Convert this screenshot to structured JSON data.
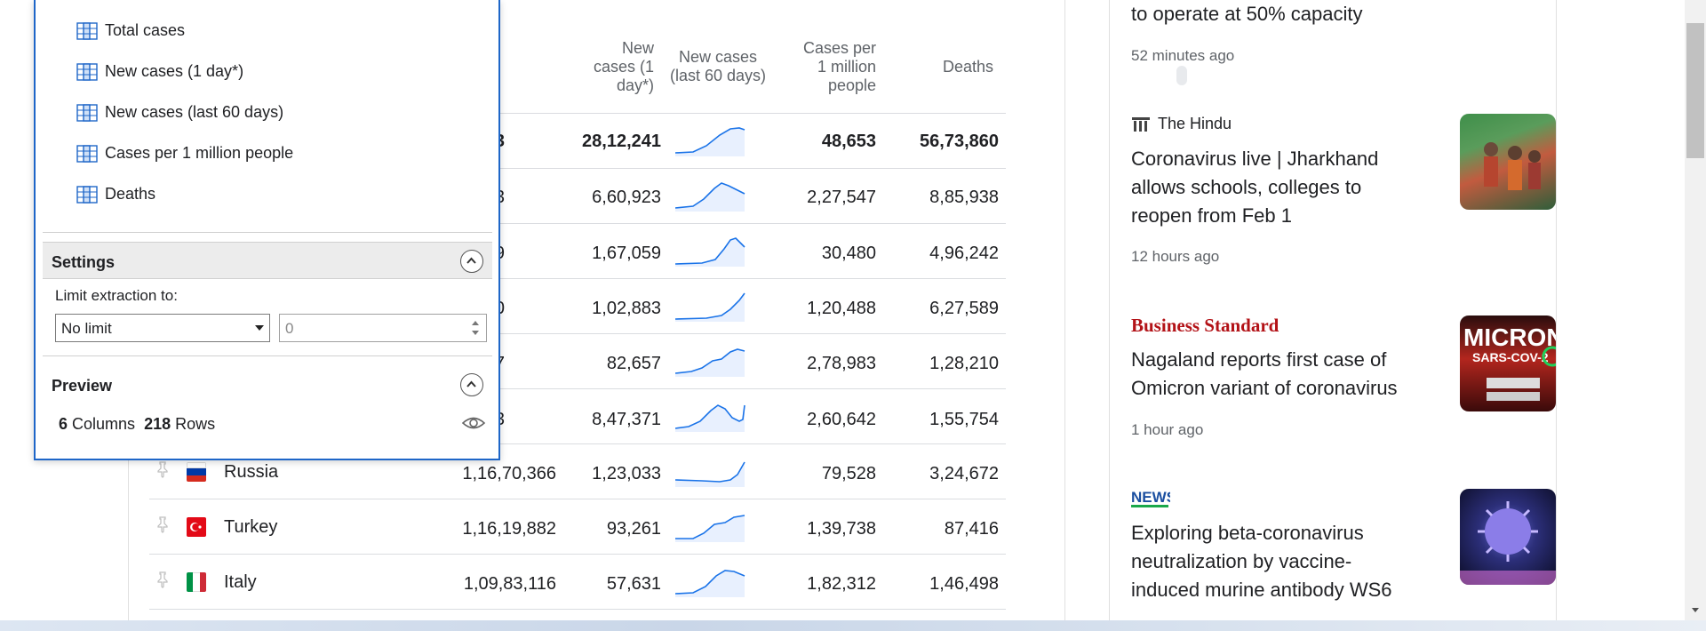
{
  "popup": {
    "column_items": [
      {
        "label": "Total cases"
      },
      {
        "label": "New cases (1 day*)"
      },
      {
        "label": "New cases (last 60 days)"
      },
      {
        "label": "Cases per 1 million people"
      },
      {
        "label": "Deaths"
      }
    ],
    "settings_title": "Settings",
    "limit_label": "Limit extraction to:",
    "limit_select_value": "No limit",
    "limit_number_value": "0",
    "preview_title": "Preview",
    "preview_columns_count": "6",
    "preview_columns_label": "Columns",
    "preview_rows_count": "218",
    "preview_rows_label": "Rows"
  },
  "table": {
    "headers": {
      "new_cases_1day": "New cases (1 day*)",
      "new_cases_60days": "New cases (last 60 days)",
      "cases_per_million": "Cases per 1 million people",
      "deaths": "Deaths"
    },
    "rows": [
      {
        "country": "",
        "total_suffix": "3",
        "new1": "28,12,241",
        "permil": "48,653",
        "deaths": "56,73,860",
        "bold": true
      },
      {
        "country": "",
        "total_suffix": "3",
        "new1": "6,60,923",
        "permil": "2,27,547",
        "deaths": "8,85,938"
      },
      {
        "country": "",
        "total_suffix": "9",
        "new1": "1,67,059",
        "permil": "30,480",
        "deaths": "4,96,242"
      },
      {
        "country": "",
        "total_suffix": "0",
        "new1": "1,02,883",
        "permil": "1,20,488",
        "deaths": "6,27,589"
      },
      {
        "country": "",
        "total_suffix": "7",
        "new1": "82,657",
        "permil": "2,78,983",
        "deaths": "1,28,210"
      },
      {
        "country": "",
        "total_suffix": "3",
        "new1": "8,47,371",
        "permil": "2,60,642",
        "deaths": "1,55,754"
      },
      {
        "country": "Russia",
        "total": "1,16,70,366",
        "new1": "1,23,033",
        "permil": "79,528",
        "deaths": "3,24,672",
        "flag": "russia-flag"
      },
      {
        "country": "Turkey",
        "total": "1,16,19,882",
        "new1": "93,261",
        "permil": "1,39,738",
        "deaths": "87,416",
        "flag": "turkey-flag"
      },
      {
        "country": "Italy",
        "total": "1,09,83,116",
        "new1": "57,631",
        "permil": "1,82,312",
        "deaths": "1,46,498",
        "flag": "italy-flag"
      }
    ]
  },
  "news": {
    "items": [
      {
        "headline": "to operate at 50% capacity",
        "time": "52 minutes ago"
      },
      {
        "source": "The Hindu",
        "headline_lines": [
          "Coronavirus live | Jharkhand",
          "allows schools, colleges to",
          "reopen from Feb 1"
        ],
        "time": "12 hours ago"
      },
      {
        "source": "Business Standard",
        "headline_lines": [
          "Nagaland reports first case of",
          "Omicron variant of coronavirus"
        ],
        "time": "1 hour ago"
      },
      {
        "source": "NEWS",
        "headline_lines": [
          "Exploring beta-coronavirus",
          "neutralization by vaccine-",
          "induced murine antibody WS6"
        ]
      }
    ]
  },
  "colors": {
    "accent": "#1e66c8",
    "spark_line": "#1a73e8",
    "spark_fill": "#e8f0fe",
    "business_standard_red": "#b31217"
  }
}
